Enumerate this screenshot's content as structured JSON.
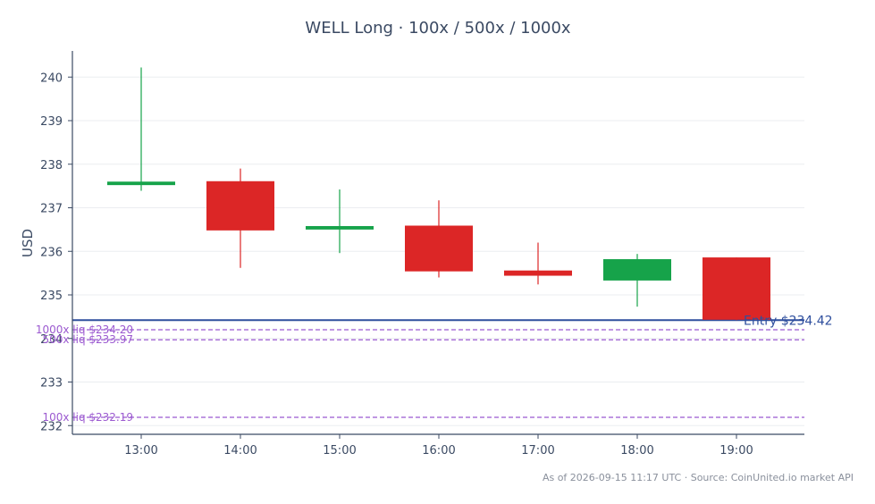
{
  "chart_data": {
    "type": "candlestick",
    "title": "WELL Long · 100x / 500x / 1000x",
    "ylabel": "USD",
    "xlabel": "",
    "ylim": [
      231.8,
      240.6
    ],
    "yticks": [
      232,
      233,
      234,
      235,
      236,
      237,
      238,
      239,
      240
    ],
    "grid": true,
    "categories": [
      "13:00",
      "14:00",
      "15:00",
      "16:00",
      "17:00",
      "18:00",
      "19:00"
    ],
    "candles": [
      {
        "x": "13:00",
        "open": 237.52,
        "high": 240.22,
        "low": 237.39,
        "close": 237.6
      },
      {
        "x": "14:00",
        "open": 237.61,
        "high": 237.9,
        "low": 235.62,
        "close": 236.48
      },
      {
        "x": "15:00",
        "open": 236.5,
        "high": 237.42,
        "low": 235.96,
        "close": 236.58
      },
      {
        "x": "16:00",
        "open": 236.59,
        "high": 237.17,
        "low": 235.4,
        "close": 235.54
      },
      {
        "x": "17:00",
        "open": 235.56,
        "high": 236.2,
        "low": 235.24,
        "close": 235.44
      },
      {
        "x": "18:00",
        "open": 235.33,
        "high": 235.94,
        "low": 234.73,
        "close": 235.82
      },
      {
        "x": "19:00",
        "open": 235.86,
        "high": 235.86,
        "low": 234.42,
        "close": 234.43
      }
    ],
    "levels": [
      {
        "name": "Entry",
        "label": "Entry $234.42",
        "value": 234.42,
        "style": "solid",
        "color": "#2f4f9e"
      },
      {
        "name": "1000x liq",
        "label": "1000x liq $234.20",
        "value": 234.2,
        "style": "dashed",
        "color": "#9b59d0"
      },
      {
        "name": "500x liq",
        "label": "500x liq $233.97",
        "value": 233.97,
        "style": "dashed",
        "color": "#9b59d0"
      },
      {
        "name": "100x liq",
        "label": "100x liq $232.19",
        "value": 232.19,
        "style": "dashed",
        "color": "#9b59d0"
      }
    ],
    "colors": {
      "up": "#16a34a",
      "down": "#dc2626",
      "axis": "#3b4a63",
      "grid": "#ebedf0"
    }
  },
  "footer": "As of 2026-09-15 11:17 UTC · Source: CoinUnited.io market API"
}
